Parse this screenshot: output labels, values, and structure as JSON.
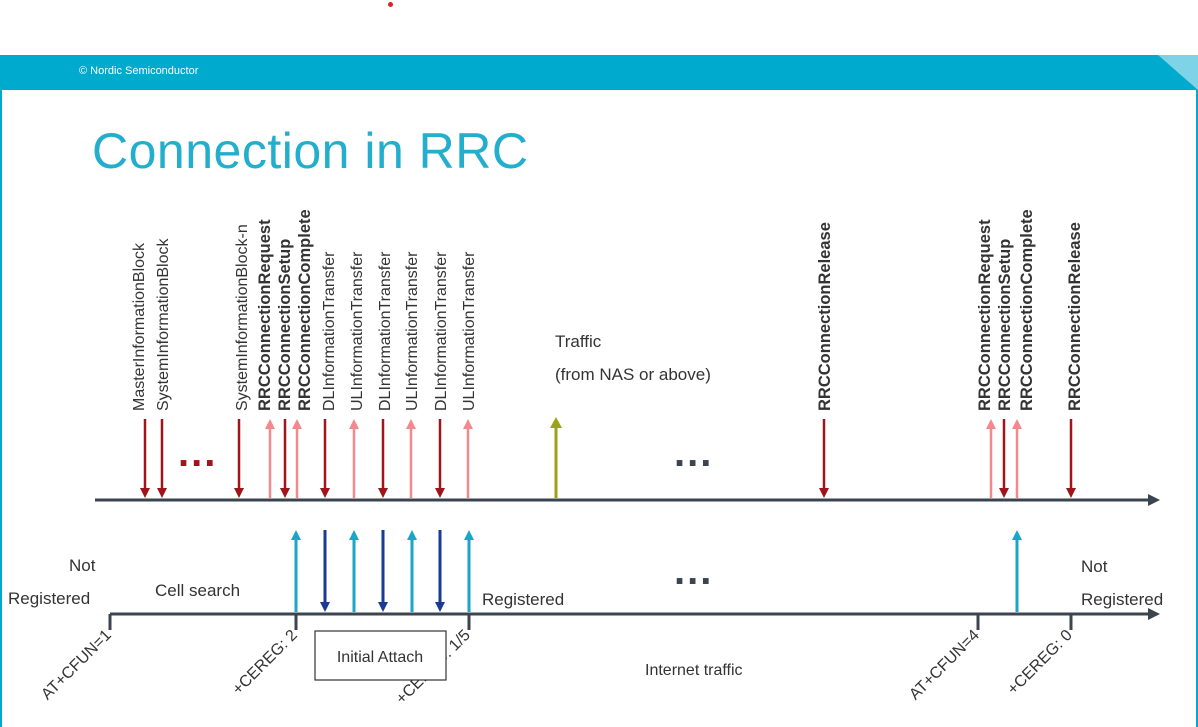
{
  "header": {
    "copyright": "© Nordic Semiconductor",
    "bar_color": "#00a9ce"
  },
  "title": "Connection in RRC",
  "colors": {
    "title": "#22aecc",
    "downlink_dark_red": "#a0141c",
    "uplink_pink": "#f4888f",
    "traffic_olive": "#9aa21a",
    "attach_up_cyan": "#1aa6c8",
    "attach_down_navy": "#1a3a96",
    "axis": "#3a4550"
  },
  "rrc_messages": [
    {
      "label": "MasterInformationBlock",
      "bold": false,
      "direction": "down"
    },
    {
      "label": "SystemInformationBlock",
      "bold": false,
      "direction": "down"
    },
    {
      "label": "SystemInformationBlock-n",
      "bold": false,
      "direction": "down"
    },
    {
      "label": "RRCConnectionRequest",
      "bold": true,
      "direction": "up"
    },
    {
      "label": "RRCConnectionSetup",
      "bold": true,
      "direction": "down"
    },
    {
      "label": "RRCConnectionComplete",
      "bold": true,
      "direction": "up"
    },
    {
      "label": "DLInformationTransfer",
      "bold": false,
      "direction": "down"
    },
    {
      "label": "ULInformationTransfer",
      "bold": false,
      "direction": "up"
    },
    {
      "label": "DLInformationTransfer",
      "bold": false,
      "direction": "down"
    },
    {
      "label": "ULInformationTransfer",
      "bold": false,
      "direction": "up"
    },
    {
      "label": "DLInformationTransfer",
      "bold": false,
      "direction": "down"
    },
    {
      "label": "ULInformationTransfer",
      "bold": false,
      "direction": "up"
    },
    {
      "label": "RRCConnectionRelease",
      "bold": true,
      "direction": "down"
    },
    {
      "label": "RRCConnectionRequest",
      "bold": true,
      "direction": "up"
    },
    {
      "label": "RRCConnectionSetup",
      "bold": true,
      "direction": "down"
    },
    {
      "label": "RRCConnectionComplete",
      "bold": true,
      "direction": "up"
    },
    {
      "label": "RRCConnectionRelease",
      "bold": true,
      "direction": "down"
    }
  ],
  "traffic": {
    "line1": "Traffic",
    "line2": "(from NAS or above)"
  },
  "ellipsis": "...",
  "states": {
    "not_registered_left_1": "Not",
    "not_registered_left_2": "Registered",
    "cell_search": "Cell search",
    "registered": "Registered",
    "not_registered_right_1": "Not",
    "not_registered_right_2": "Registered"
  },
  "timeline_labels": {
    "cfun1": "AT+CFUN=1",
    "cereg2": "+CEREG: 2",
    "cereg15": "+CEREG: 1/5",
    "cfun4": "AT+CFUN=4",
    "cereg0": "+CEREG: 0"
  },
  "initial_attach": "Initial Attach",
  "internet_traffic": "Internet traffic"
}
